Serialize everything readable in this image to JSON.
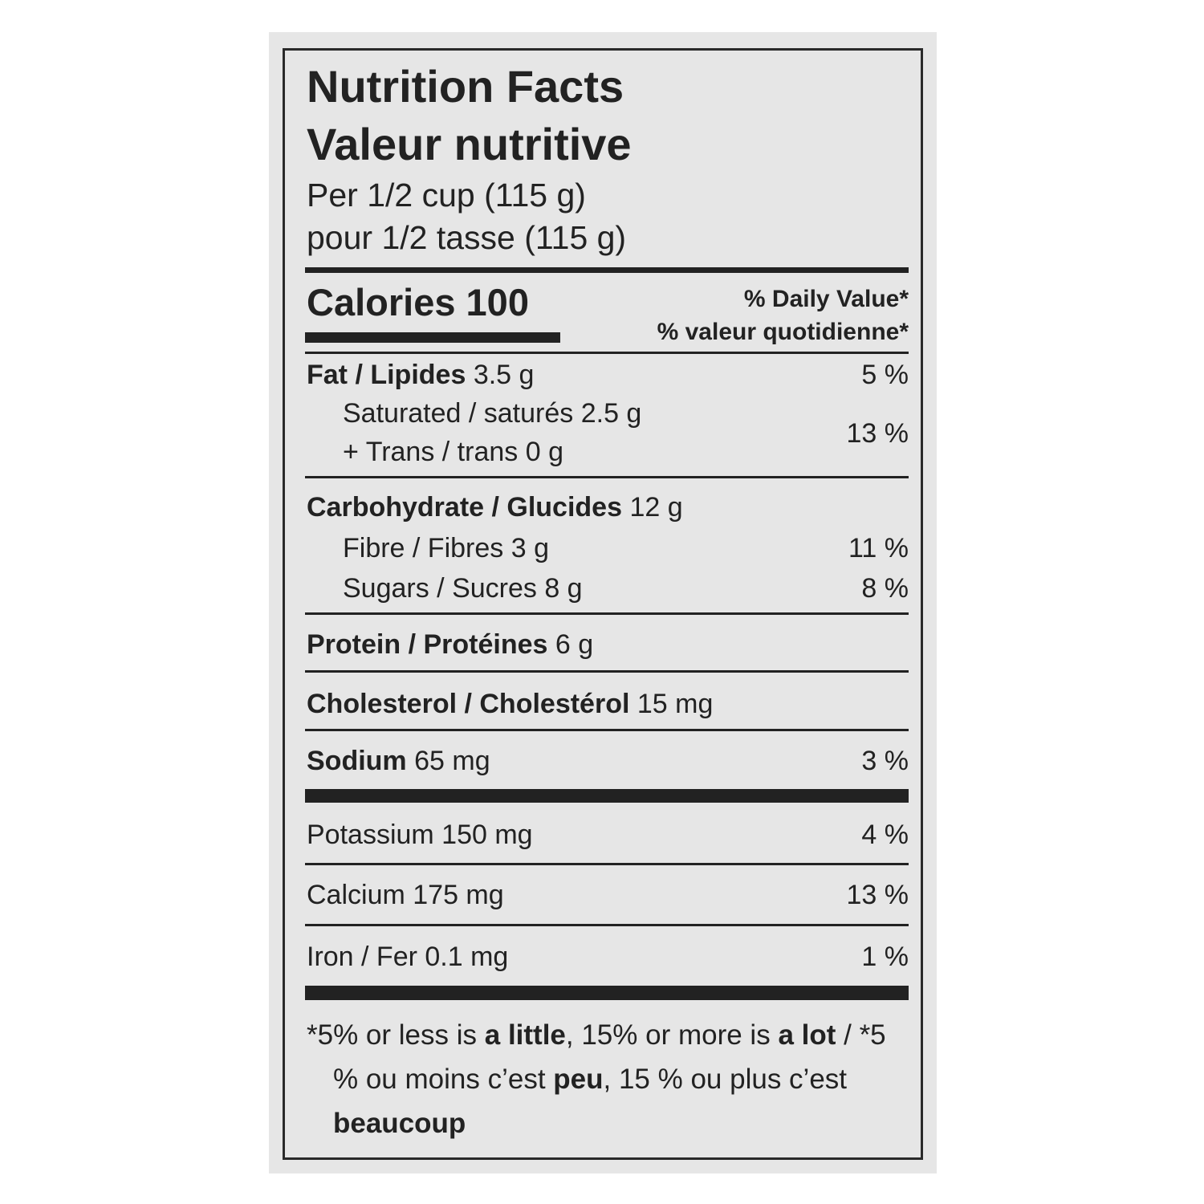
{
  "title": [
    "Nutrition Facts",
    "Valeur nutritive"
  ],
  "serving": [
    "Per 1/2 cup (115 g)",
    "pour 1/2 tasse (115 g)"
  ],
  "calories": {
    "label": "Calories",
    "value": "100"
  },
  "daily_value_header": [
    "% Daily Value*",
    "% valeur quotidienne*"
  ],
  "fat": {
    "name": "Fat / Lipides",
    "amount": "3.5 g",
    "dv": "5 %"
  },
  "saturated_trans": {
    "lines": [
      "Saturated / saturés 2.5 g",
      "+ Trans / trans 0 g"
    ],
    "dv": "13 %"
  },
  "carbohydrate": {
    "name": "Carbohydrate / Glucides",
    "amount": "12 g"
  },
  "fibre": {
    "label": "Fibre / Fibres 3 g",
    "dv": "11 %"
  },
  "sugars": {
    "label": "Sugars / Sucres 8 g",
    "dv": "8 %"
  },
  "protein": {
    "name": "Protein / Protéines",
    "amount": "6 g"
  },
  "cholesterol": {
    "name": "Cholesterol / Cholestérol",
    "amount": "15 mg"
  },
  "sodium": {
    "name": "Sodium",
    "amount": "65 mg",
    "dv": "3 %"
  },
  "potassium": {
    "label": "Potassium 150 mg",
    "dv": "4 %"
  },
  "calcium": {
    "label": "Calcium 175 mg",
    "dv": "13 %"
  },
  "iron": {
    "label": "Iron / Fer 0.1 mg",
    "dv": "1 %"
  },
  "footnote": [
    {
      "text": "*5% or less is ",
      "bold": false
    },
    {
      "text": "a little",
      "bold": true
    },
    {
      "text": ", 15% or more is ",
      "bold": false
    },
    {
      "text": "a lot",
      "bold": true
    },
    {
      "text": " / *5 % ou moins c’est ",
      "bold": false
    },
    {
      "text": "peu",
      "bold": true
    },
    {
      "text": ", 15 % ou plus c’est ",
      "bold": false
    },
    {
      "text": "beaucoup",
      "bold": true
    }
  ]
}
